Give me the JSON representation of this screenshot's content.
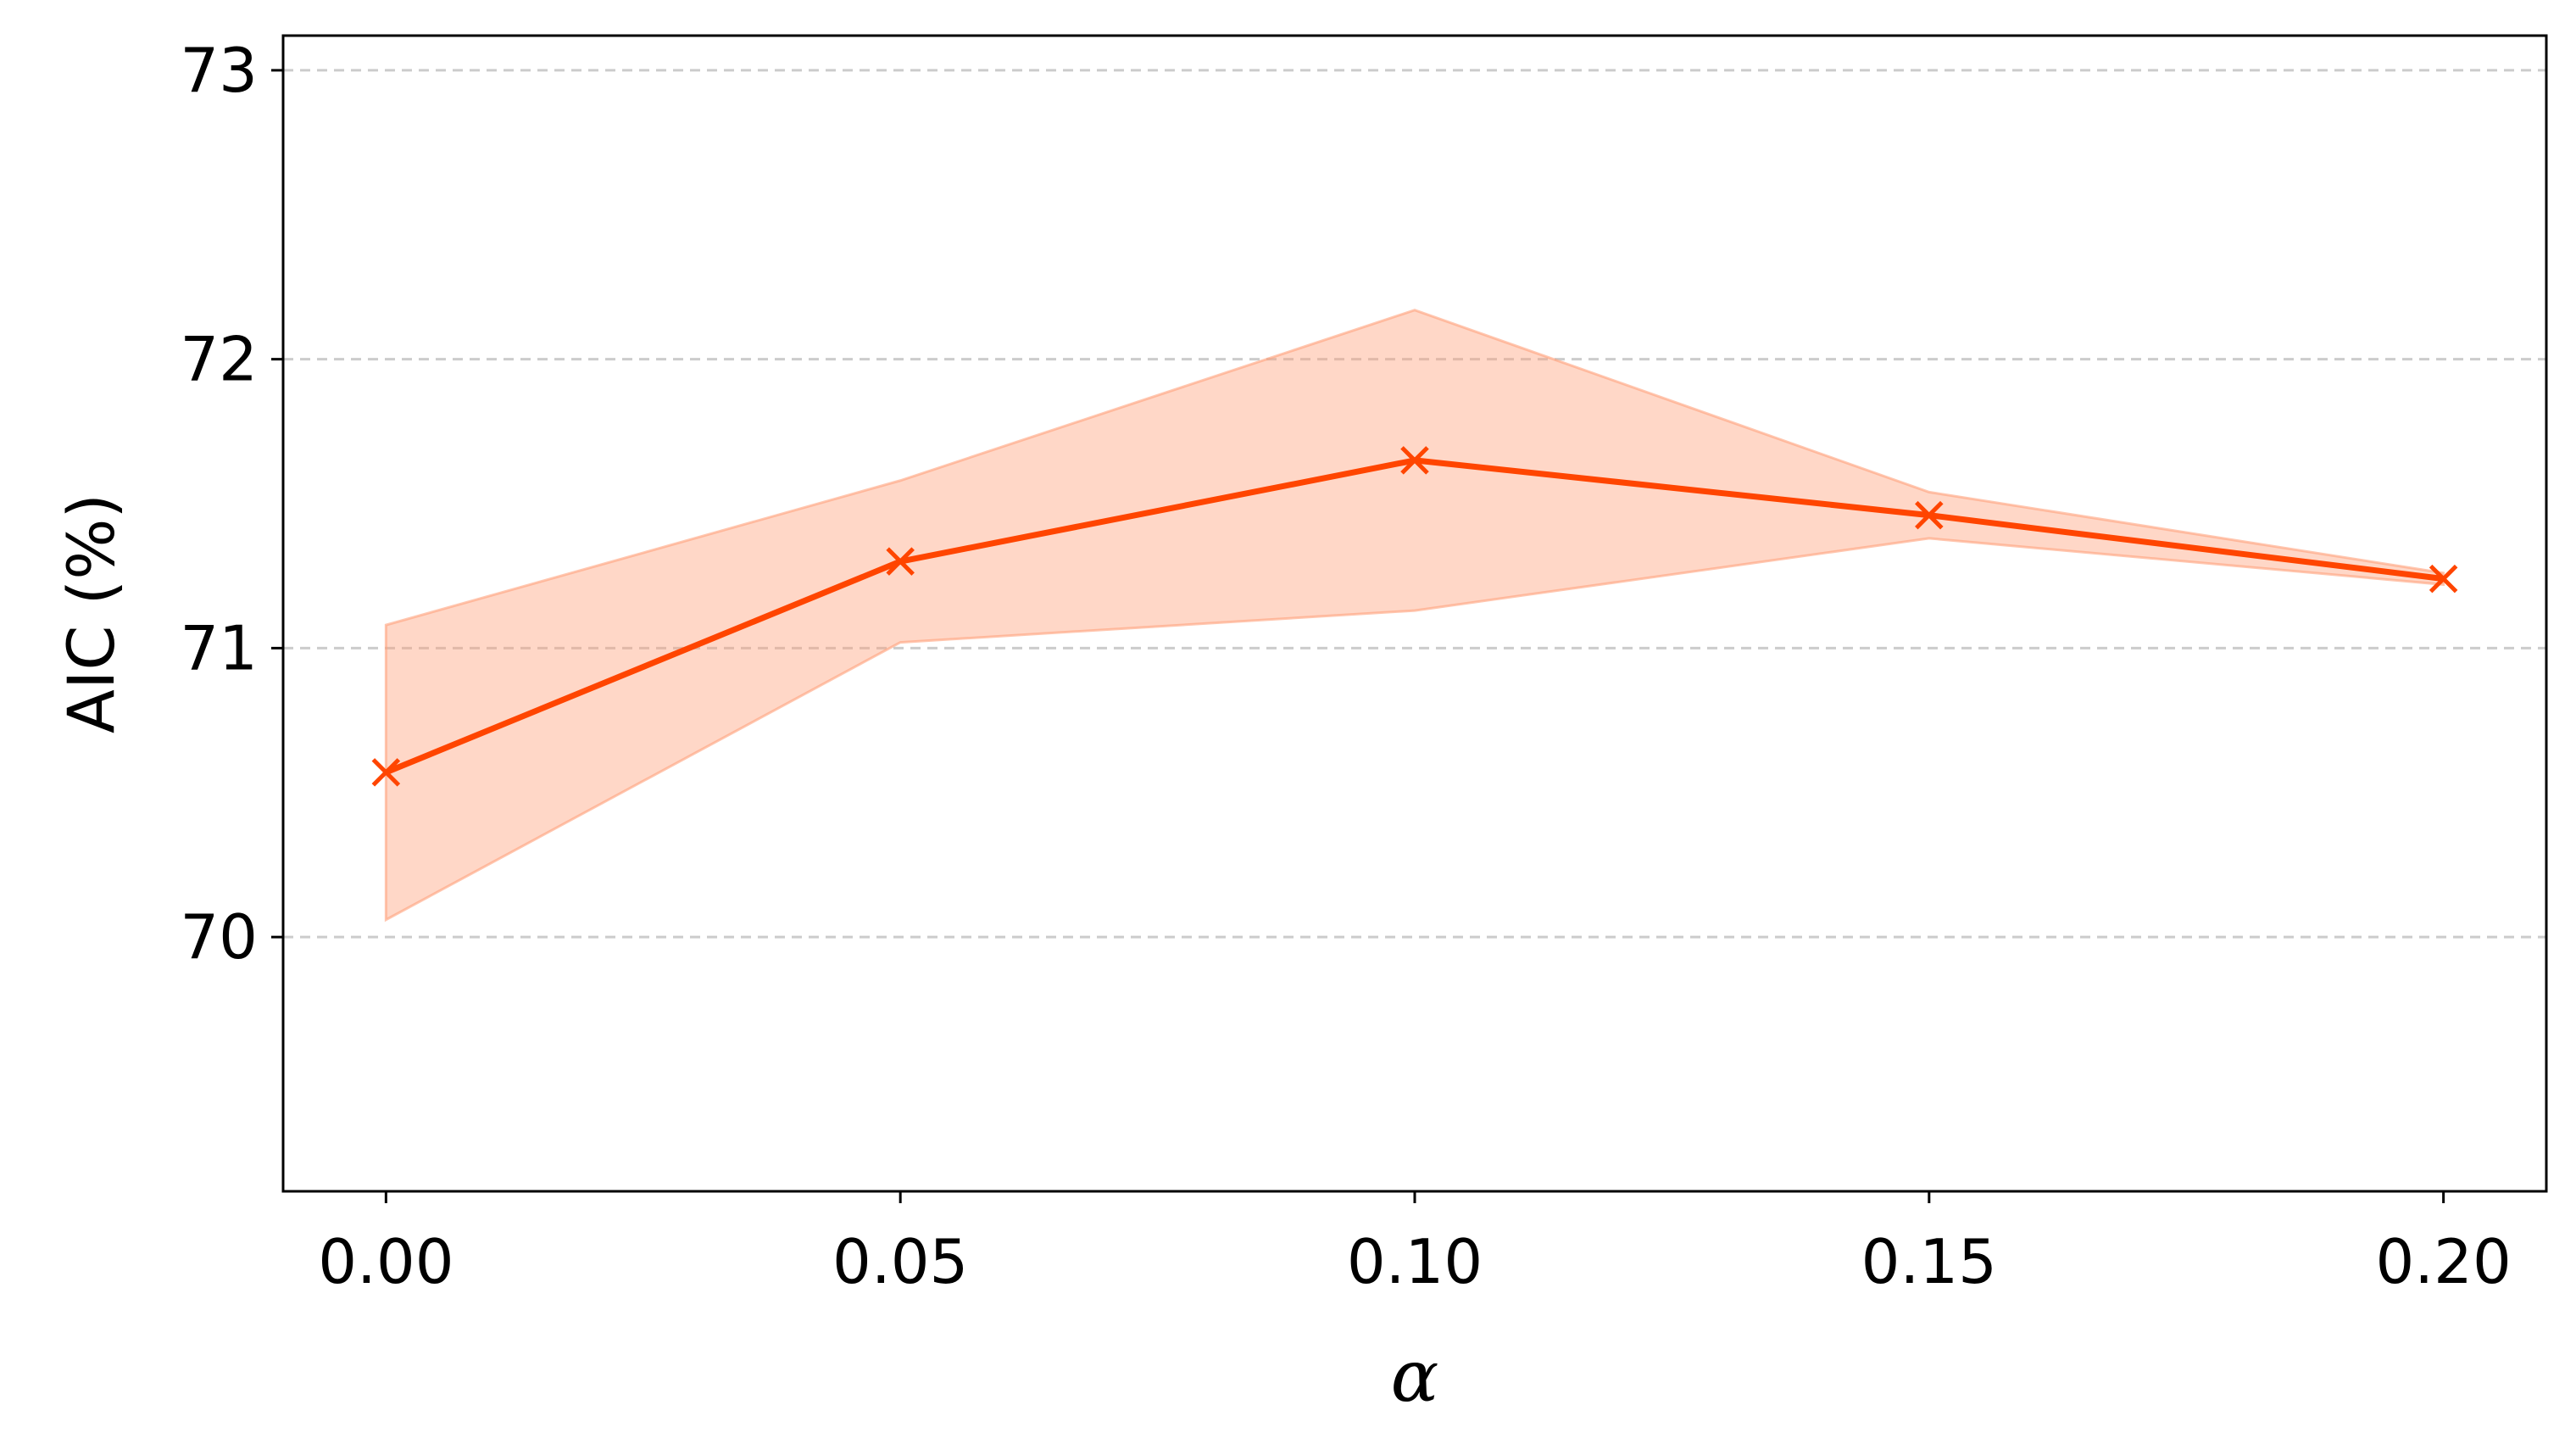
{
  "chart_data": {
    "type": "line",
    "title": "",
    "xlabel": "α",
    "ylabel": "AIC (%)",
    "x": [
      0.0,
      0.05,
      0.1,
      0.15,
      0.2
    ],
    "xticks": [
      "0.00",
      "0.05",
      "0.10",
      "0.15",
      "0.20"
    ],
    "yticks": [
      "70",
      "71",
      "72",
      "73"
    ],
    "xlim": [
      -0.01,
      0.21
    ],
    "ylim": [
      69.12,
      73.12
    ],
    "grid": "y-dashed",
    "series": [
      {
        "values": [
          70.57,
          71.3,
          71.65,
          71.46,
          71.24
        ],
        "lower": [
          70.06,
          71.02,
          71.13,
          71.38,
          71.22
        ],
        "upper": [
          71.08,
          71.58,
          72.17,
          71.54,
          71.26
        ],
        "color": "#ff4500",
        "band_color": "#ffa07a",
        "marker": "x"
      }
    ]
  }
}
